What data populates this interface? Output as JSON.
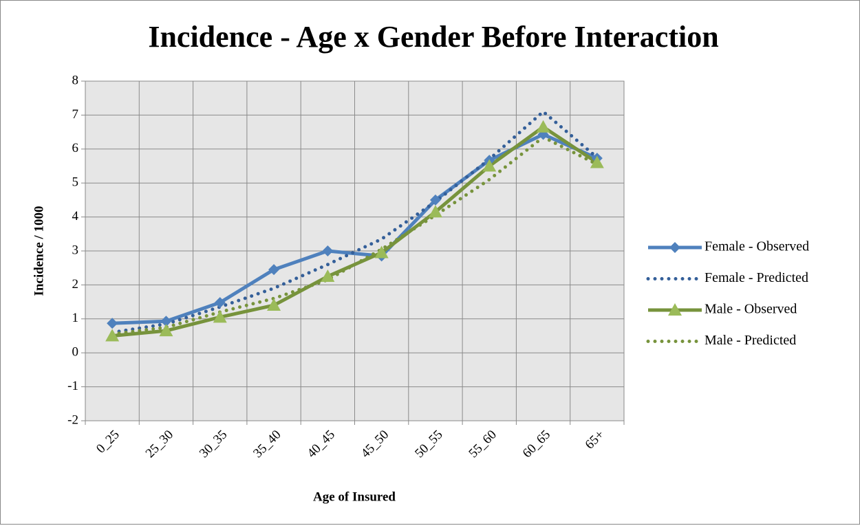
{
  "chart_data": {
    "type": "line",
    "title": "Incidence - Age x Gender Before Interaction",
    "x_label": "Age of Insured",
    "y_label": "Incidence / 1000",
    "categories": [
      "0_25",
      "25_30",
      "30_35",
      "35_40",
      "40_45",
      "45_50",
      "50_55",
      "55_60",
      "60_65",
      "65+"
    ],
    "series": [
      {
        "name": "Female - Observed",
        "color": "#4f81bd",
        "dash": "solid",
        "marker": "diamond",
        "values": [
          0.87,
          0.93,
          1.48,
          2.45,
          3.0,
          2.85,
          4.5,
          5.67,
          6.43,
          5.73
        ]
      },
      {
        "name": "Female - Predicted",
        "color": "#345f99",
        "dash": "dotted",
        "marker": "none",
        "values": [
          0.6,
          0.85,
          1.35,
          1.9,
          2.6,
          3.35,
          4.45,
          5.7,
          7.1,
          5.75
        ]
      },
      {
        "name": "Male - Observed",
        "color": "#77933c",
        "dash": "solid",
        "marker": "triangle",
        "marker_color": "#9bbb59",
        "values": [
          0.5,
          0.65,
          1.05,
          1.4,
          2.25,
          2.95,
          4.15,
          5.5,
          6.65,
          5.6
        ]
      },
      {
        "name": "Male - Predicted",
        "color": "#77933c",
        "dash": "dotted",
        "marker": "none",
        "values": [
          0.55,
          0.75,
          1.2,
          1.6,
          2.15,
          3.05,
          4.05,
          5.1,
          6.35,
          5.55
        ]
      }
    ],
    "ylim": [
      -2,
      8
    ],
    "yticks": [
      -2,
      -1,
      0,
      1,
      2,
      3,
      4,
      5,
      6,
      7,
      8
    ],
    "grid": true,
    "legend": "right",
    "plot_background": "#e6e6e6"
  }
}
